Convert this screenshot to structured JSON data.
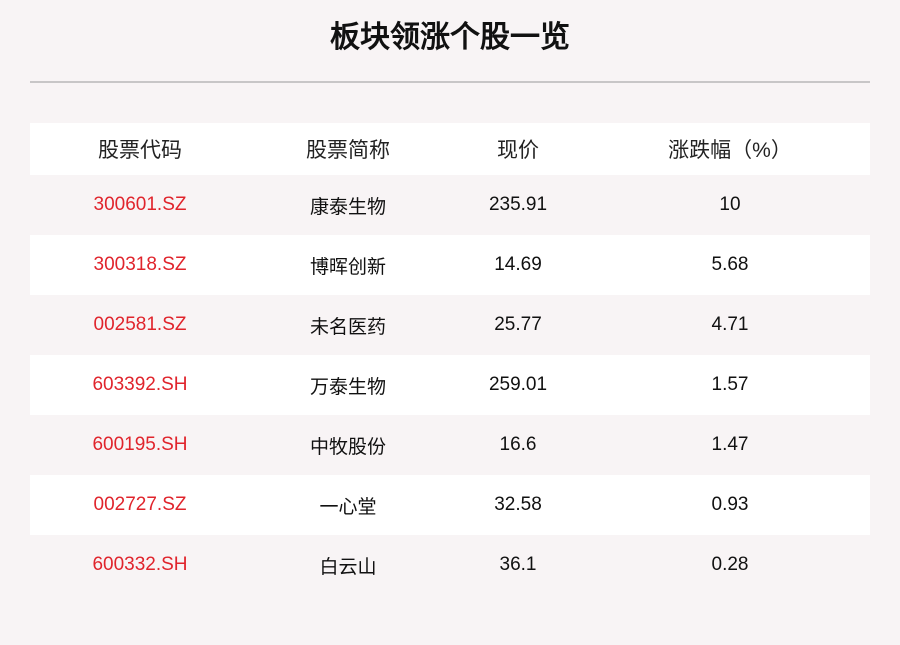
{
  "title": "板块领涨个股一览",
  "colors": {
    "code": "#e0242c",
    "background": "#f8f4f5"
  },
  "table": {
    "headers": [
      "股票代码",
      "股票简称",
      "现价",
      "涨跌幅（%）"
    ],
    "rows": [
      [
        "300601.SZ",
        "康泰生物",
        "235.91",
        "10"
      ],
      [
        "300318.SZ",
        "博晖创新",
        "14.69",
        "5.68"
      ],
      [
        "002581.SZ",
        "未名医药",
        "25.77",
        "4.71"
      ],
      [
        "603392.SH",
        "万泰生物",
        "259.01",
        "1.57"
      ],
      [
        "600195.SH",
        "中牧股份",
        "16.6",
        "1.47"
      ],
      [
        "002727.SZ",
        "一心堂",
        "32.58",
        "0.93"
      ],
      [
        "600332.SH",
        "白云山",
        "36.1",
        "0.28"
      ]
    ]
  }
}
